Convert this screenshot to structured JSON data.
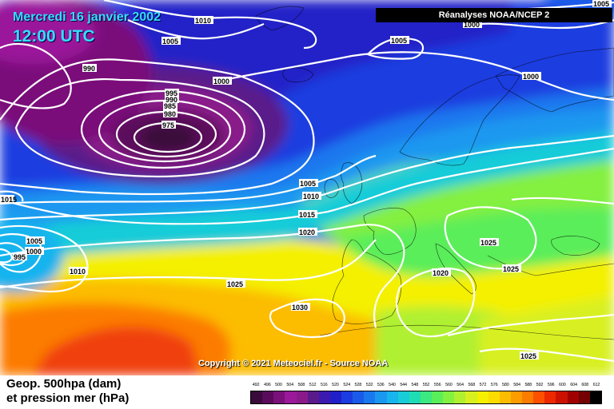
{
  "header": {
    "date": "Mercredi 16 janvier 2002",
    "time": "12:00 UTC",
    "source": "Réanalyses NOAA/NCEP 2"
  },
  "footer": {
    "copyright": "Copyright © 2021 Meteociel.fr - Source NOAA",
    "legend_line1": "Geop. 500hpa (dam)",
    "legend_line2": "et pression mer (hPa)"
  },
  "color_scale": {
    "values": [
      "492",
      "496",
      "500",
      "504",
      "508",
      "512",
      "516",
      "520",
      "524",
      "528",
      "532",
      "536",
      "540",
      "544",
      "548",
      "552",
      "556",
      "560",
      "564",
      "568",
      "572",
      "576",
      "580",
      "584",
      "588",
      "592",
      "596",
      "600",
      "604",
      "608",
      "612"
    ],
    "colors": [
      "#3a0a3a",
      "#5a0a5a",
      "#7a107a",
      "#9a189a",
      "#8a1a8a",
      "#5a1a8a",
      "#3c1ab0",
      "#2020c8",
      "#1a3ce0",
      "#1a5ae8",
      "#1a78ee",
      "#1a98f0",
      "#18b4ee",
      "#18ccd8",
      "#20dcb4",
      "#3ce880",
      "#5aee5a",
      "#84f040",
      "#b0f030",
      "#d8f020",
      "#f4f000",
      "#fcdc00",
      "#fcbc00",
      "#fc9c00",
      "#fc7c00",
      "#fc5000",
      "#ec2800",
      "#cc1000",
      "#a00000",
      "#740000",
      "#000000"
    ]
  },
  "isobars": [
    {
      "label": "975"
    },
    {
      "label": "980"
    },
    {
      "label": "985"
    },
    {
      "label": "990"
    },
    {
      "label": "995"
    },
    {
      "label": "990"
    },
    {
      "label": "1000"
    },
    {
      "label": "1005"
    },
    {
      "label": "1010"
    },
    {
      "label": "1015"
    },
    {
      "label": "1020"
    },
    {
      "label": "1025"
    },
    {
      "label": "1030"
    },
    {
      "label": "1005"
    },
    {
      "label": "1000"
    },
    {
      "label": "995"
    },
    {
      "label": "1010"
    },
    {
      "label": "1015"
    },
    {
      "label": "1010"
    },
    {
      "label": "1005"
    },
    {
      "label": "1005"
    },
    {
      "label": "1000"
    },
    {
      "label": "1000"
    },
    {
      "label": "1005"
    },
    {
      "label": "1025"
    },
    {
      "label": "1025"
    },
    {
      "label": "1020"
    },
    {
      "label": "1025"
    },
    {
      "label": "1025"
    }
  ]
}
